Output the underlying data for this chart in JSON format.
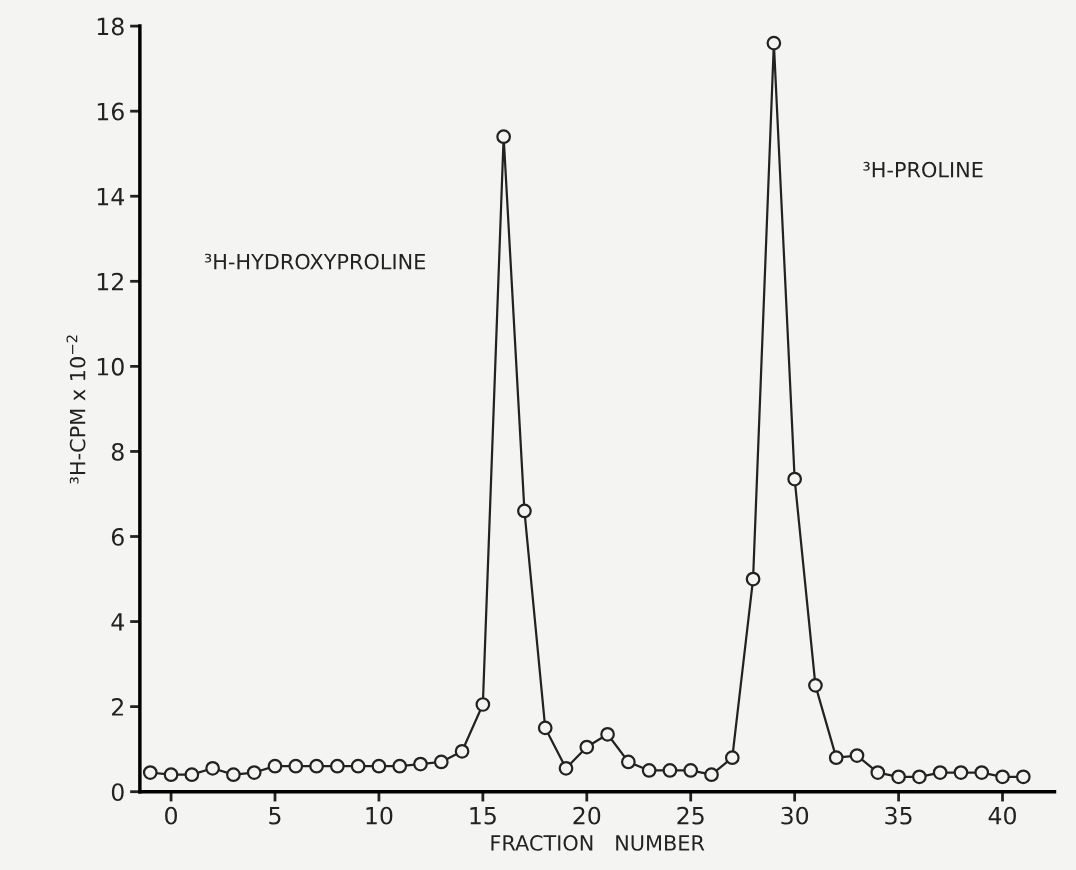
{
  "chart_data": {
    "type": "line",
    "xlabel": "FRACTION   NUMBER",
    "ylabel": "³H-CPM x 10$^{−2}$",
    "x": [
      -1,
      0,
      1,
      2,
      3,
      4,
      5,
      6,
      7,
      8,
      9,
      10,
      11,
      12,
      13,
      14,
      15,
      16,
      17,
      18,
      19,
      20,
      21,
      22,
      23,
      24,
      25,
      26,
      27,
      28,
      29,
      30,
      31,
      32,
      33,
      34,
      35,
      36,
      37,
      38,
      39,
      40,
      41
    ],
    "series": [
      {
        "color": "#222222",
        "values": [
          0.45,
          0.4,
          0.4,
          0.55,
          0.4,
          0.45,
          0.6,
          0.6,
          0.6,
          0.6,
          0.6,
          0.6,
          0.6,
          0.65,
          0.7,
          0.95,
          2.05,
          15.4,
          6.6,
          1.5,
          0.55,
          1.05,
          1.35,
          0.7,
          0.5,
          0.5,
          0.5,
          0.4,
          0.8,
          5.0,
          17.6,
          7.35,
          2.5,
          0.8,
          0.85,
          0.45,
          0.35,
          0.35,
          0.45,
          0.45,
          0.45,
          0.35,
          0.35
        ]
      }
    ],
    "annotations": [
      "³H-HYDROXYPROLINE",
      "³H-PROLINE"
    ],
    "xlim": [
      -1.5,
      42.5
    ],
    "ylim": [
      0,
      18
    ],
    "xticks": [
      0,
      5,
      10,
      15,
      20,
      25,
      30,
      35,
      40
    ],
    "yticks": [
      0,
      2,
      4,
      6,
      8,
      10,
      12,
      14,
      16,
      18
    ],
    "marker": "circle",
    "line_style": "solid",
    "grid": false,
    "legend": false
  }
}
